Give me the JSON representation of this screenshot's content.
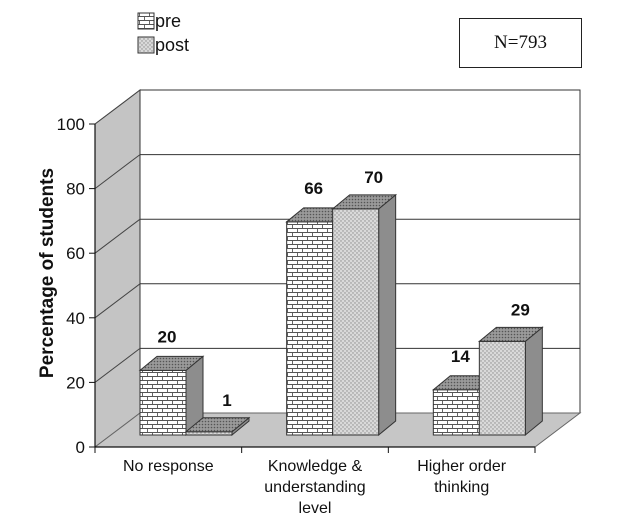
{
  "chart_data": {
    "type": "bar",
    "title": "",
    "xlabel": "",
    "ylabel": "Percentage of students",
    "ylim": [
      0,
      100
    ],
    "yticks": [
      0,
      20,
      40,
      60,
      80,
      100
    ],
    "categories": [
      [
        "No response"
      ],
      [
        "Knowledge &",
        "understanding",
        "level"
      ],
      [
        "Higher order",
        "thinking"
      ]
    ],
    "series": [
      {
        "name": "pre",
        "values": [
          20,
          66,
          14
        ],
        "color": "#f2f2f2"
      },
      {
        "name": "post",
        "values": [
          1,
          70,
          29
        ],
        "color": "#d6d6d6"
      }
    ],
    "legend_position": "top-left",
    "grid": true,
    "style": "3d"
  },
  "annotation": {
    "text": "N=793"
  },
  "legend": {
    "pre_label": "pre",
    "post_label": "post"
  }
}
